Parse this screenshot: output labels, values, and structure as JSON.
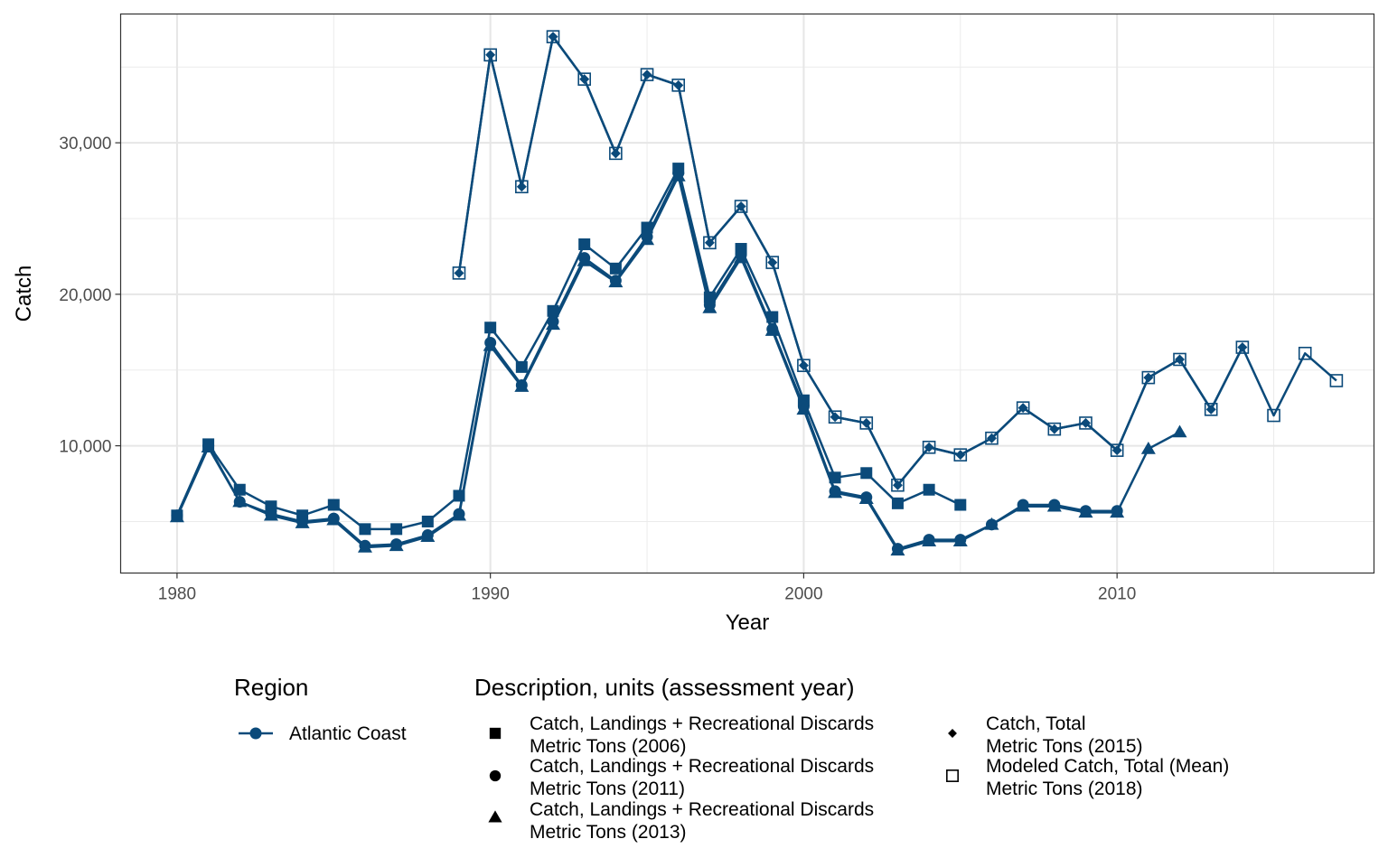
{
  "chart_data": {
    "type": "line",
    "title": "",
    "xlabel": "Year",
    "ylabel": "Catch",
    "xlim": [
      1978.2,
      2018.2
    ],
    "ylim": [
      1600,
      38500
    ],
    "x_ticks": [
      1980,
      1990,
      2000,
      2010
    ],
    "x_tick_labels": [
      "1980",
      "1990",
      "2000",
      "2010"
    ],
    "y_ticks": [
      10000,
      20000,
      30000
    ],
    "y_tick_labels": [
      "10,000",
      "20,000",
      "30,000"
    ],
    "grid": true,
    "color": "#0b4a7a",
    "legend_position": "bottom",
    "legend": {
      "region_title": "Region",
      "region_label": "Atlantic Coast",
      "description_title": "Description, units (assessment year)"
    },
    "series": [
      {
        "name_line1": "Catch, Landings + Recreational Discards",
        "name_line2": "Metric Tons (2006)",
        "marker": "square",
        "points": [
          [
            1980,
            5400
          ],
          [
            1981,
            10100
          ],
          [
            1982,
            7100
          ],
          [
            1983,
            6000
          ],
          [
            1984,
            5400
          ],
          [
            1985,
            6100
          ],
          [
            1986,
            4500
          ],
          [
            1987,
            4500
          ],
          [
            1988,
            5000
          ],
          [
            1989,
            6700
          ],
          [
            1990,
            17800
          ],
          [
            1991,
            15200
          ],
          [
            1992,
            18900
          ],
          [
            1993,
            23300
          ],
          [
            1994,
            21700
          ],
          [
            1995,
            24400
          ],
          [
            1996,
            28300
          ],
          [
            1997,
            19800
          ],
          [
            1998,
            23000
          ],
          [
            1999,
            18500
          ],
          [
            2000,
            13000
          ],
          [
            2001,
            7900
          ],
          [
            2002,
            8200
          ],
          [
            2003,
            6200
          ],
          [
            2004,
            7100
          ],
          [
            2005,
            6100
          ]
        ]
      },
      {
        "name_line1": "Catch, Landings + Recreational Discards",
        "name_line2": "Metric Tons (2011)",
        "marker": "circle",
        "points": [
          [
            1980,
            5400
          ],
          [
            1981,
            10000
          ],
          [
            1982,
            6300
          ],
          [
            1983,
            5500
          ],
          [
            1984,
            5000
          ],
          [
            1985,
            5200
          ],
          [
            1986,
            3400
          ],
          [
            1987,
            3500
          ],
          [
            1988,
            4100
          ],
          [
            1989,
            5500
          ],
          [
            1990,
            16800
          ],
          [
            1991,
            14000
          ],
          [
            1992,
            18200
          ],
          [
            1993,
            22400
          ],
          [
            1994,
            20900
          ],
          [
            1995,
            23800
          ],
          [
            1996,
            28000
          ],
          [
            1997,
            19300
          ],
          [
            1998,
            22600
          ],
          [
            1999,
            17700
          ],
          [
            2000,
            12600
          ],
          [
            2001,
            7000
          ],
          [
            2002,
            6600
          ],
          [
            2003,
            3200
          ],
          [
            2004,
            3800
          ],
          [
            2005,
            3800
          ],
          [
            2006,
            4800
          ],
          [
            2007,
            6100
          ],
          [
            2008,
            6100
          ],
          [
            2009,
            5700
          ],
          [
            2010,
            5700
          ]
        ]
      },
      {
        "name_line1": "Catch, Landings + Recreational Discards",
        "name_line2": "Metric Tons (2013)",
        "marker": "triangle",
        "points": [
          [
            1980,
            5300
          ],
          [
            1981,
            9900
          ],
          [
            1982,
            6300
          ],
          [
            1983,
            5400
          ],
          [
            1984,
            4900
          ],
          [
            1985,
            5100
          ],
          [
            1986,
            3300
          ],
          [
            1987,
            3400
          ],
          [
            1988,
            4000
          ],
          [
            1989,
            5400
          ],
          [
            1990,
            16600
          ],
          [
            1991,
            13900
          ],
          [
            1992,
            18000
          ],
          [
            1993,
            22200
          ],
          [
            1994,
            20800
          ],
          [
            1995,
            23600
          ],
          [
            1996,
            27800
          ],
          [
            1997,
            19100
          ],
          [
            1998,
            22400
          ],
          [
            1999,
            17600
          ],
          [
            2000,
            12400
          ],
          [
            2001,
            6900
          ],
          [
            2002,
            6500
          ],
          [
            2003,
            3100
          ],
          [
            2004,
            3700
          ],
          [
            2005,
            3700
          ],
          [
            2006,
            4800
          ],
          [
            2007,
            6000
          ],
          [
            2008,
            6000
          ],
          [
            2009,
            5600
          ],
          [
            2010,
            5600
          ],
          [
            2011,
            9800
          ],
          [
            2012,
            10900
          ]
        ]
      },
      {
        "name_line1": "Catch, Total",
        "name_line2": "Metric Tons (2015)",
        "marker": "diamond",
        "points": [
          [
            1989,
            21400
          ],
          [
            1990,
            35800
          ],
          [
            1991,
            27100
          ],
          [
            1992,
            37000
          ],
          [
            1993,
            34200
          ],
          [
            1994,
            29300
          ],
          [
            1995,
            34500
          ],
          [
            1996,
            33800
          ],
          [
            1997,
            23400
          ],
          [
            1998,
            25800
          ],
          [
            1999,
            22100
          ],
          [
            2000,
            15300
          ],
          [
            2001,
            11900
          ],
          [
            2002,
            11500
          ],
          [
            2003,
            7400
          ],
          [
            2004,
            9900
          ],
          [
            2005,
            9400
          ],
          [
            2006,
            10500
          ],
          [
            2007,
            12500
          ],
          [
            2008,
            11100
          ],
          [
            2009,
            11500
          ],
          [
            2010,
            9700
          ],
          [
            2011,
            14500
          ],
          [
            2012,
            15700
          ],
          [
            2013,
            12400
          ],
          [
            2014,
            16500
          ]
        ]
      },
      {
        "name_line1": "Modeled Catch, Total (Mean)",
        "name_line2": "Metric Tons (2018)",
        "marker": "open-square",
        "points": [
          [
            1989,
            21400
          ],
          [
            1990,
            35800
          ],
          [
            1991,
            27100
          ],
          [
            1992,
            37000
          ],
          [
            1993,
            34200
          ],
          [
            1994,
            29300
          ],
          [
            1995,
            34500
          ],
          [
            1996,
            33800
          ],
          [
            1997,
            23400
          ],
          [
            1998,
            25800
          ],
          [
            1999,
            22100
          ],
          [
            2000,
            15300
          ],
          [
            2001,
            11900
          ],
          [
            2002,
            11500
          ],
          [
            2003,
            7400
          ],
          [
            2004,
            9900
          ],
          [
            2005,
            9400
          ],
          [
            2006,
            10500
          ],
          [
            2007,
            12500
          ],
          [
            2008,
            11100
          ],
          [
            2009,
            11500
          ],
          [
            2010,
            9700
          ],
          [
            2011,
            14500
          ],
          [
            2012,
            15700
          ],
          [
            2013,
            12400
          ],
          [
            2014,
            16500
          ],
          [
            2015,
            12000
          ],
          [
            2016,
            16100
          ],
          [
            2017,
            14300
          ]
        ]
      }
    ]
  }
}
